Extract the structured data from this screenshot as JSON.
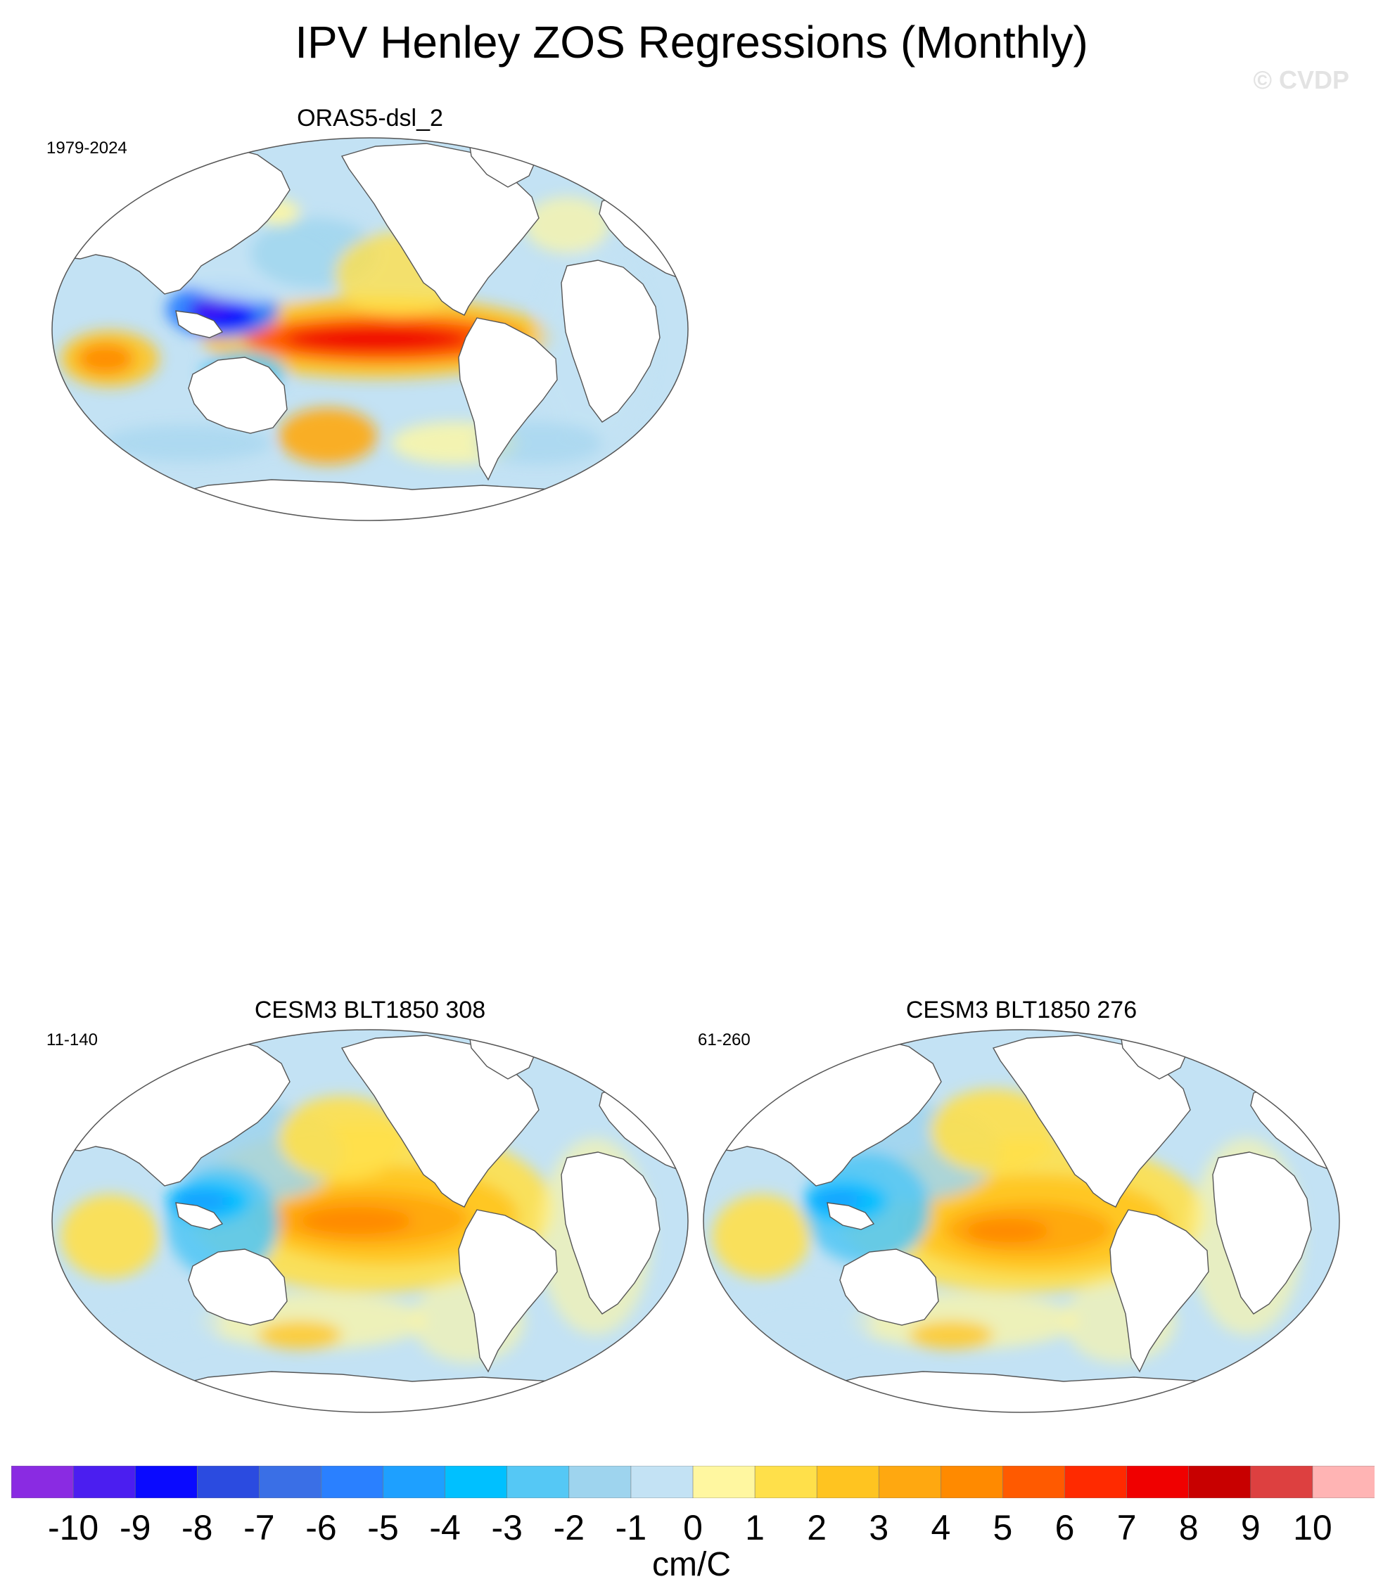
{
  "figure": {
    "title": "IPV Henley ZOS Regressions (Monthly)",
    "watermark": "© CVDP"
  },
  "panels": [
    {
      "name": "ORAS5-dsl_2",
      "years": "1979-2024",
      "pattern": "obs"
    },
    {
      "name": "CESM3 BLT1850 308",
      "years": "11-140",
      "pattern": "model-a"
    },
    {
      "name": "CESM3 BLT1850 276",
      "years": "61-260",
      "pattern": "model-b"
    }
  ],
  "colorbar": {
    "units": "cm/C",
    "colors": [
      "#8a2be2",
      "#4b1ef0",
      "#0a0aff",
      "#2b4be0",
      "#3a6fe6",
      "#2a80ff",
      "#1ea0ff",
      "#00c0ff",
      "#55c8f5",
      "#9ed4ee",
      "#c3e2f4",
      "#fff7a0",
      "#ffe04a",
      "#ffc420",
      "#ffa810",
      "#ff8a00",
      "#ff5a00",
      "#ff2a00",
      "#f00000",
      "#c80000",
      "#dd4040",
      "#ffb4b4"
    ],
    "ticks": [
      "-10",
      "-9",
      "-8",
      "-7",
      "-6",
      "-5",
      "-4",
      "-3",
      "-2",
      "-1",
      "0",
      "1",
      "2",
      "3",
      "4",
      "5",
      "6",
      "7",
      "8",
      "9",
      "10"
    ]
  }
}
